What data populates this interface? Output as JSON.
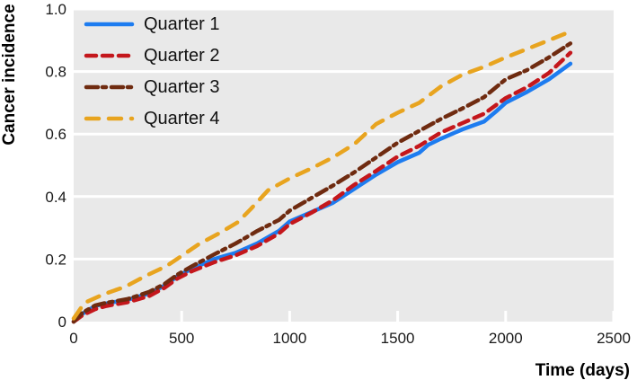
{
  "chart_data": {
    "type": "line",
    "title": "",
    "xlabel": "Time (days)",
    "ylabel": "Cancer incidence",
    "xlim": [
      0,
      2500
    ],
    "ylim": [
      0,
      1.0
    ],
    "x_ticks": [
      0,
      500,
      1000,
      1500,
      2000,
      2500
    ],
    "x_tick_labels": [
      "0",
      "500",
      "1000",
      "1500",
      "2000",
      "2500"
    ],
    "y_ticks": [
      0,
      0.2,
      0.4,
      0.6,
      0.8,
      1.0
    ],
    "y_tick_labels": [
      "0",
      "0.2",
      "0.4",
      "0.6",
      "0.8",
      "1.0"
    ],
    "grid": "horizontal",
    "gridline_color": "#ffffff",
    "panel_color": "#e9e9e9",
    "legend_position": "top-left-inside",
    "series": [
      {
        "name": "Quarter 1",
        "color": "#1d7cf0",
        "dash": "solid",
        "points": [
          [
            0,
            0
          ],
          [
            40,
            0.025
          ],
          [
            100,
            0.05
          ],
          [
            150,
            0.058
          ],
          [
            250,
            0.07
          ],
          [
            350,
            0.09
          ],
          [
            420,
            0.115
          ],
          [
            480,
            0.145
          ],
          [
            550,
            0.17
          ],
          [
            650,
            0.2
          ],
          [
            750,
            0.22
          ],
          [
            850,
            0.25
          ],
          [
            950,
            0.29
          ],
          [
            1000,
            0.32
          ],
          [
            1100,
            0.35
          ],
          [
            1200,
            0.38
          ],
          [
            1300,
            0.425
          ],
          [
            1400,
            0.47
          ],
          [
            1500,
            0.51
          ],
          [
            1600,
            0.54
          ],
          [
            1640,
            0.565
          ],
          [
            1700,
            0.585
          ],
          [
            1800,
            0.615
          ],
          [
            1900,
            0.64
          ],
          [
            1960,
            0.675
          ],
          [
            2000,
            0.7
          ],
          [
            2100,
            0.735
          ],
          [
            2200,
            0.775
          ],
          [
            2300,
            0.825
          ]
        ]
      },
      {
        "name": "Quarter 2",
        "color": "#c4171c",
        "dash": "dashed",
        "points": [
          [
            0,
            0
          ],
          [
            40,
            0.02
          ],
          [
            100,
            0.04
          ],
          [
            150,
            0.05
          ],
          [
            250,
            0.062
          ],
          [
            350,
            0.082
          ],
          [
            420,
            0.108
          ],
          [
            480,
            0.138
          ],
          [
            550,
            0.162
          ],
          [
            650,
            0.19
          ],
          [
            750,
            0.212
          ],
          [
            850,
            0.242
          ],
          [
            950,
            0.282
          ],
          [
            1000,
            0.312
          ],
          [
            1100,
            0.348
          ],
          [
            1200,
            0.388
          ],
          [
            1300,
            0.438
          ],
          [
            1400,
            0.482
          ],
          [
            1500,
            0.528
          ],
          [
            1600,
            0.562
          ],
          [
            1700,
            0.605
          ],
          [
            1800,
            0.635
          ],
          [
            1900,
            0.665
          ],
          [
            2000,
            0.715
          ],
          [
            2100,
            0.75
          ],
          [
            2200,
            0.795
          ],
          [
            2300,
            0.86
          ]
        ]
      },
      {
        "name": "Quarter 3",
        "color": "#6f2b10",
        "dash": "dash-dot",
        "points": [
          [
            0,
            0
          ],
          [
            40,
            0.028
          ],
          [
            100,
            0.052
          ],
          [
            150,
            0.06
          ],
          [
            250,
            0.072
          ],
          [
            350,
            0.095
          ],
          [
            420,
            0.12
          ],
          [
            480,
            0.15
          ],
          [
            550,
            0.178
          ],
          [
            650,
            0.215
          ],
          [
            750,
            0.25
          ],
          [
            850,
            0.29
          ],
          [
            950,
            0.325
          ],
          [
            1000,
            0.355
          ],
          [
            1100,
            0.395
          ],
          [
            1200,
            0.435
          ],
          [
            1300,
            0.478
          ],
          [
            1400,
            0.525
          ],
          [
            1500,
            0.572
          ],
          [
            1600,
            0.61
          ],
          [
            1700,
            0.648
          ],
          [
            1800,
            0.682
          ],
          [
            1900,
            0.718
          ],
          [
            2000,
            0.775
          ],
          [
            2100,
            0.805
          ],
          [
            2200,
            0.845
          ],
          [
            2300,
            0.89
          ]
        ]
      },
      {
        "name": "Quarter 4",
        "color": "#e8a41f",
        "dash": "long-dash",
        "points": [
          [
            0,
            0.01
          ],
          [
            50,
            0.06
          ],
          [
            140,
            0.088
          ],
          [
            240,
            0.112
          ],
          [
            330,
            0.145
          ],
          [
            430,
            0.178
          ],
          [
            510,
            0.215
          ],
          [
            580,
            0.248
          ],
          [
            680,
            0.285
          ],
          [
            760,
            0.318
          ],
          [
            820,
            0.36
          ],
          [
            900,
            0.42
          ],
          [
            1000,
            0.458
          ],
          [
            1100,
            0.49
          ],
          [
            1200,
            0.525
          ],
          [
            1300,
            0.568
          ],
          [
            1400,
            0.632
          ],
          [
            1500,
            0.668
          ],
          [
            1600,
            0.7
          ],
          [
            1700,
            0.752
          ],
          [
            1800,
            0.79
          ],
          [
            1900,
            0.815
          ],
          [
            2000,
            0.845
          ],
          [
            2100,
            0.872
          ],
          [
            2200,
            0.9
          ],
          [
            2300,
            0.928
          ]
        ]
      }
    ]
  }
}
